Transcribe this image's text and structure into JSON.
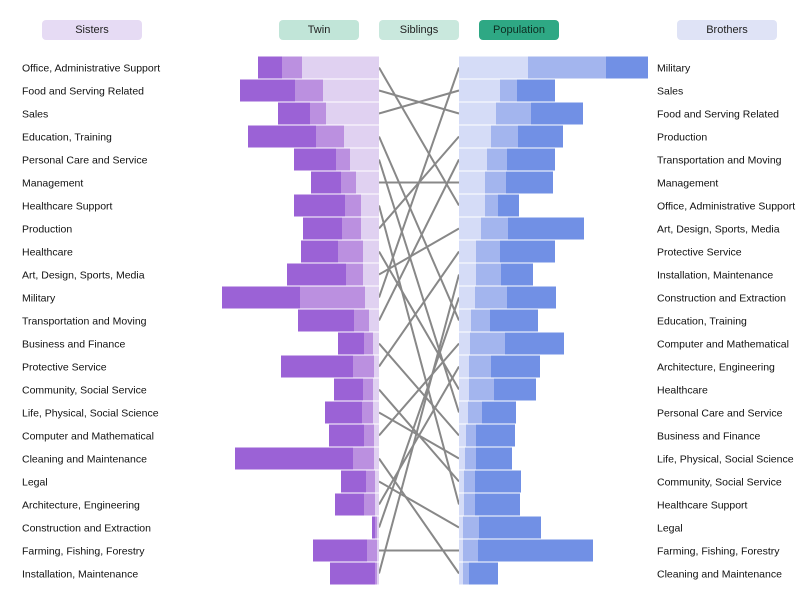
{
  "controls": {
    "sisters": "Sisters",
    "twin": "Twin",
    "siblings": "Siblings",
    "population": "Population",
    "brothers": "Brothers"
  },
  "colors": {
    "sisters_pill": "#e6dbf4",
    "twin_pill": "#c1e5d8",
    "siblings_pill": "#c9e8dd",
    "population_pill": "#2ea884",
    "brothers_pill": "#dfe3f6",
    "sister_dark": "#9b62d6",
    "sister_mid": "#bb90e0",
    "sister_light": "#e0d1f1",
    "brother_dark": "#7190e5",
    "brother_mid": "#a3b5ee",
    "brother_light": "#d5dcf7",
    "connector": "#888888"
  },
  "chart_data": {
    "type": "bar",
    "left": {
      "categories": [
        "Office, Administrative Support",
        "Food and Serving Related",
        "Sales",
        "Education, Training",
        "Personal Care and Service",
        "Management",
        "Healthcare Support",
        "Production",
        "Healthcare",
        "Art, Design, Sports, Media",
        "Military",
        "Transportation and Moving",
        "Business and Finance",
        "Protective Service",
        "Community, Social Service",
        "Life, Physical, Social Science",
        "Computer and Mathematical",
        "Cleaning and Maintenance",
        "Legal",
        "Architecture, Engineering",
        "Construction and Extraction",
        "Farming, Fishing, Forestry",
        "Installation, Maintenance"
      ],
      "series": [
        {
          "values": [
            77,
            56,
            53,
            35,
            29,
            23,
            18,
            18,
            16,
            16,
            14,
            10,
            6,
            5,
            6,
            6,
            5,
            5,
            4,
            4,
            2,
            2,
            2
          ]
        },
        {
          "values": [
            97,
            84,
            69,
            63,
            43,
            38,
            34,
            37,
            41,
            33,
            79,
            25,
            15,
            26,
            16,
            17,
            15,
            26,
            13,
            15,
            4,
            12,
            4
          ]
        },
        {
          "values": [
            121,
            139,
            101,
            131,
            85,
            68,
            85,
            76,
            78,
            92,
            157,
            81,
            41,
            98,
            45,
            54,
            50,
            144,
            38,
            44,
            7,
            66,
            49
          ]
        }
      ]
    },
    "right": {
      "categories": [
        "Military",
        "Sales",
        "Food and Serving Related",
        "Production",
        "Transportation and Moving",
        "Management",
        "Office, Administrative Support",
        "Art, Design, Sports, Media",
        "Protective Service",
        "Installation, Maintenance",
        "Construction and Extraction",
        "Education, Training",
        "Computer and Mathematical",
        "Architecture, Engineering",
        "Healthcare",
        "Personal Care and Service",
        "Business and Finance",
        "Life, Physical, Social Science",
        "Community, Social Service",
        "Healthcare Support",
        "Legal",
        "Farming, Fishing, Forestry",
        "Cleaning and Maintenance"
      ],
      "series": [
        {
          "values": [
            69,
            41,
            37,
            32,
            28,
            26,
            26,
            22,
            17,
            17,
            16,
            12,
            11,
            10,
            10,
            9,
            7,
            6,
            5,
            5,
            4,
            4,
            4
          ]
        },
        {
          "values": [
            147,
            58,
            72,
            59,
            48,
            47,
            39,
            49,
            41,
            42,
            48,
            31,
            46,
            32,
            35,
            23,
            17,
            17,
            16,
            16,
            20,
            19,
            10
          ]
        },
        {
          "values": [
            189,
            96,
            124,
            104,
            96,
            94,
            60,
            125,
            96,
            74,
            97,
            79,
            105,
            81,
            77,
            57,
            56,
            53,
            62,
            61,
            82,
            134,
            39
          ]
        }
      ]
    }
  }
}
